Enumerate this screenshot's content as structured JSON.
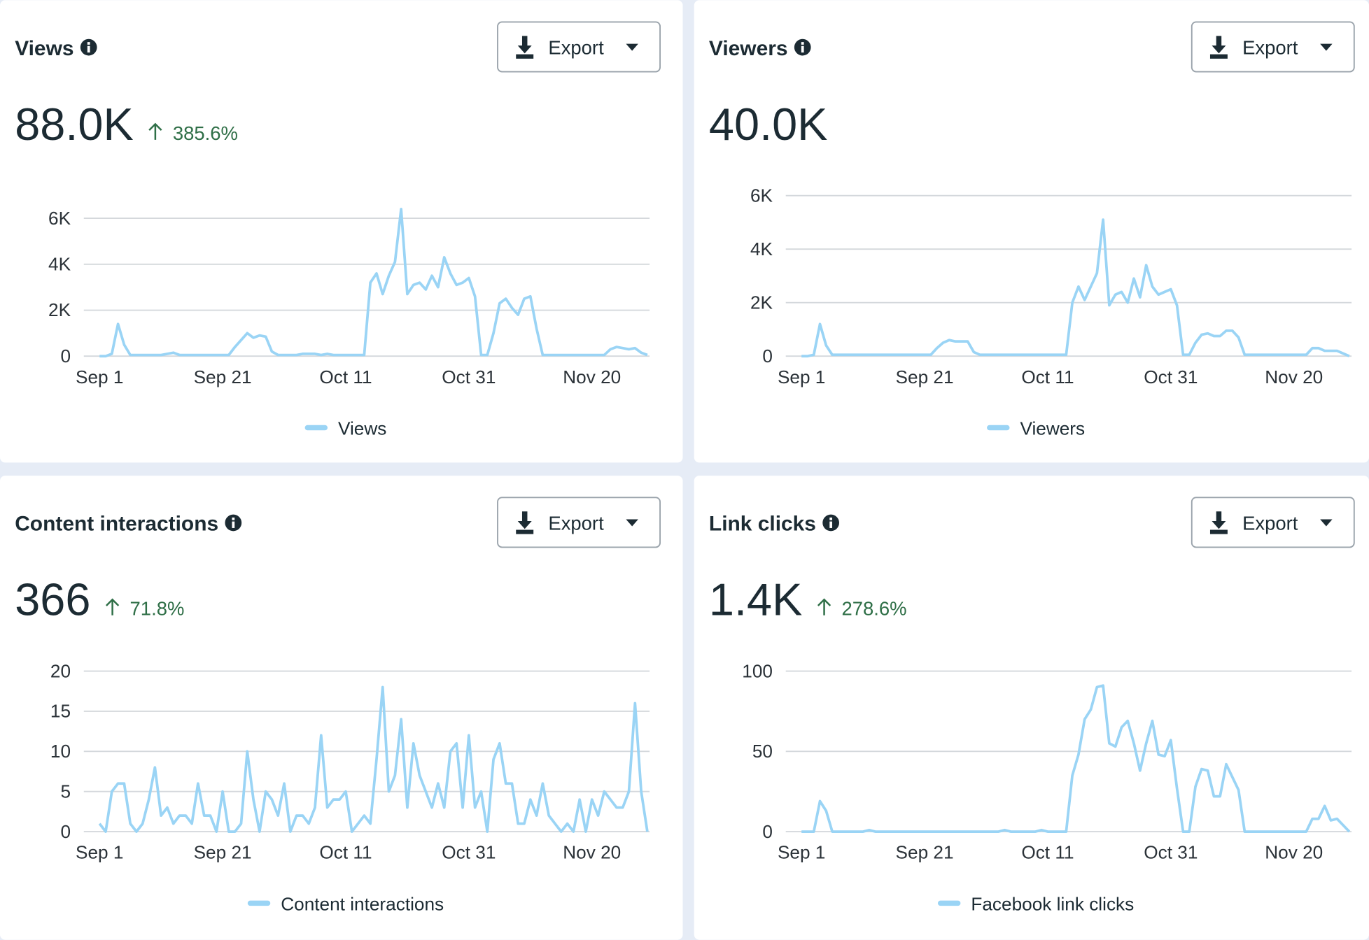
{
  "chart_data": [
    {
      "type": "line",
      "title": "Views",
      "total": "88.0K",
      "change": "385.6%",
      "button": "Export",
      "categories": [
        "Sep 1",
        null,
        null,
        null,
        null,
        null,
        null,
        null,
        null,
        null,
        null,
        null,
        null,
        null,
        null,
        null,
        null,
        null,
        null,
        null,
        "Sep 21",
        null,
        null,
        null,
        null,
        null,
        null,
        null,
        null,
        null,
        null,
        null,
        null,
        null,
        null,
        null,
        null,
        null,
        null,
        null,
        "Oct 11",
        null,
        null,
        null,
        null,
        null,
        null,
        null,
        null,
        null,
        null,
        null,
        null,
        null,
        null,
        null,
        null,
        null,
        null,
        null,
        "Oct 31",
        null,
        null,
        null,
        null,
        null,
        null,
        null,
        null,
        null,
        null,
        null,
        null,
        null,
        null,
        null,
        null,
        null,
        null,
        null,
        "Nov 20",
        null,
        null,
        null,
        null,
        null,
        null,
        null,
        null,
        null
      ],
      "series": [
        {
          "name": "Views",
          "color": "#9ad4f5",
          "values": [
            0,
            0,
            100,
            1400,
            500,
            50,
            50,
            50,
            50,
            50,
            50,
            100,
            150,
            50,
            50,
            50,
            50,
            50,
            50,
            50,
            50,
            50,
            400,
            700,
            1000,
            800,
            900,
            850,
            200,
            50,
            50,
            50,
            50,
            100,
            100,
            100,
            50,
            100,
            50,
            50,
            50,
            50,
            50,
            50,
            3200,
            3600,
            2700,
            3500,
            4100,
            6400,
            2700,
            3100,
            3200,
            2900,
            3500,
            3000,
            4300,
            3600,
            3100,
            3200,
            3400,
            2600,
            50,
            50,
            1000,
            2300,
            2500,
            2100,
            1800,
            2500,
            2600,
            1200,
            50,
            50,
            50,
            50,
            50,
            50,
            50,
            50,
            50,
            50,
            50,
            300,
            400,
            350,
            300,
            350,
            150,
            50
          ]
        }
      ],
      "ylim": [
        0,
        6000
      ],
      "yticks": [
        0,
        {
          "value": 2000,
          "label": "2K"
        },
        {
          "value": 4000,
          "label": "4K"
        },
        {
          "value": 6000,
          "label": "6K"
        }
      ],
      "grid": true
    },
    {
      "type": "line",
      "title": "Viewers",
      "total": "40.0K",
      "button": "Export",
      "categories": [
        "Sep 1",
        null,
        null,
        null,
        null,
        null,
        null,
        null,
        null,
        null,
        null,
        null,
        null,
        null,
        null,
        null,
        null,
        null,
        null,
        null,
        "Sep 21",
        null,
        null,
        null,
        null,
        null,
        null,
        null,
        null,
        null,
        null,
        null,
        null,
        null,
        null,
        null,
        null,
        null,
        null,
        null,
        "Oct 11",
        null,
        null,
        null,
        null,
        null,
        null,
        null,
        null,
        null,
        null,
        null,
        null,
        null,
        null,
        null,
        null,
        null,
        null,
        null,
        "Oct 31",
        null,
        null,
        null,
        null,
        null,
        null,
        null,
        null,
        null,
        null,
        null,
        null,
        null,
        null,
        null,
        null,
        null,
        null,
        null,
        "Nov 20",
        null,
        null,
        null,
        null,
        null,
        null,
        null,
        null,
        null
      ],
      "series": [
        {
          "name": "Viewers",
          "color": "#9ad4f5",
          "values": [
            0,
            0,
            50,
            1200,
            400,
            50,
            50,
            50,
            50,
            50,
            50,
            50,
            50,
            50,
            50,
            50,
            50,
            50,
            50,
            50,
            50,
            50,
            300,
            500,
            600,
            550,
            550,
            550,
            150,
            50,
            50,
            50,
            50,
            50,
            50,
            50,
            50,
            50,
            50,
            50,
            50,
            50,
            50,
            50,
            2000,
            2600,
            2100,
            2600,
            3100,
            5100,
            1900,
            2300,
            2400,
            2000,
            2900,
            2200,
            3400,
            2600,
            2300,
            2400,
            2500,
            1900,
            50,
            50,
            500,
            800,
            850,
            750,
            750,
            950,
            950,
            700,
            50,
            50,
            50,
            50,
            50,
            50,
            50,
            50,
            50,
            50,
            50,
            300,
            300,
            200,
            200,
            200,
            100,
            0
          ]
        }
      ],
      "ylim": [
        0,
        6000
      ],
      "yticks": [
        0,
        {
          "value": 2000,
          "label": "2K"
        },
        {
          "value": 4000,
          "label": "4K"
        },
        {
          "value": 6000,
          "label": "6K"
        }
      ],
      "grid": true
    },
    {
      "type": "line",
      "title": "Content interactions",
      "total": "366",
      "change": "71.8%",
      "button": "Export",
      "categories": [
        "Sep 1",
        null,
        null,
        null,
        null,
        null,
        null,
        null,
        null,
        null,
        null,
        null,
        null,
        null,
        null,
        null,
        null,
        null,
        null,
        null,
        "Sep 21",
        null,
        null,
        null,
        null,
        null,
        null,
        null,
        null,
        null,
        null,
        null,
        null,
        null,
        null,
        null,
        null,
        null,
        null,
        null,
        "Oct 11",
        null,
        null,
        null,
        null,
        null,
        null,
        null,
        null,
        null,
        null,
        null,
        null,
        null,
        null,
        null,
        null,
        null,
        null,
        null,
        "Oct 31",
        null,
        null,
        null,
        null,
        null,
        null,
        null,
        null,
        null,
        null,
        null,
        null,
        null,
        null,
        null,
        null,
        null,
        null,
        null,
        "Nov 20",
        null,
        null,
        null,
        null,
        null,
        null,
        null,
        null,
        null
      ],
      "series": [
        {
          "name": "Content interactions",
          "color": "#9ad4f5",
          "values": [
            1,
            0,
            5,
            6,
            6,
            1,
            0,
            1,
            4,
            8,
            2,
            3,
            1,
            2,
            2,
            1,
            6,
            2,
            2,
            0,
            5,
            0,
            0,
            1,
            10,
            4,
            0,
            5,
            4,
            2,
            6,
            0,
            2,
            2,
            1,
            3,
            12,
            3,
            4,
            4,
            5,
            0,
            1,
            2,
            1,
            9,
            18,
            5,
            7,
            14,
            3,
            11,
            7,
            5,
            3,
            6,
            3,
            10,
            11,
            3,
            12,
            3,
            5,
            0,
            9,
            11,
            6,
            6,
            1,
            1,
            4,
            2,
            6,
            2,
            1,
            0,
            1,
            0,
            4,
            0,
            4,
            2,
            5,
            4,
            3,
            3,
            5,
            16,
            5,
            0
          ]
        }
      ],
      "ylim": [
        0,
        20
      ],
      "yticks": [
        0,
        5,
        10,
        15,
        20
      ],
      "grid": true
    },
    {
      "type": "line",
      "title": "Link clicks",
      "total": "1.4K",
      "change": "278.6%",
      "button": "Export",
      "categories": [
        "Sep 1",
        null,
        null,
        null,
        null,
        null,
        null,
        null,
        null,
        null,
        null,
        null,
        null,
        null,
        null,
        null,
        null,
        null,
        null,
        null,
        "Sep 21",
        null,
        null,
        null,
        null,
        null,
        null,
        null,
        null,
        null,
        null,
        null,
        null,
        null,
        null,
        null,
        null,
        null,
        null,
        null,
        "Oct 11",
        null,
        null,
        null,
        null,
        null,
        null,
        null,
        null,
        null,
        null,
        null,
        null,
        null,
        null,
        null,
        null,
        null,
        null,
        null,
        "Oct 31",
        null,
        null,
        null,
        null,
        null,
        null,
        null,
        null,
        null,
        null,
        null,
        null,
        null,
        null,
        null,
        null,
        null,
        null,
        null,
        "Nov 20",
        null,
        null,
        null,
        null,
        null,
        null,
        null,
        null,
        null
      ],
      "series": [
        {
          "name": "Facebook link clicks",
          "color": "#9ad4f5",
          "values": [
            0,
            0,
            0,
            19,
            13,
            0,
            0,
            0,
            0,
            0,
            0,
            1,
            0,
            0,
            0,
            0,
            0,
            0,
            0,
            0,
            0,
            0,
            0,
            0,
            0,
            0,
            0,
            0,
            0,
            0,
            0,
            0,
            0,
            1,
            0,
            0,
            0,
            0,
            0,
            1,
            0,
            0,
            0,
            0,
            35,
            48,
            70,
            76,
            90,
            91,
            55,
            53,
            65,
            69,
            55,
            38,
            55,
            69,
            48,
            47,
            57,
            27,
            0,
            0,
            28,
            39,
            38,
            22,
            22,
            42,
            34,
            26,
            0,
            0,
            0,
            0,
            0,
            0,
            0,
            0,
            0,
            0,
            0,
            8,
            8,
            16,
            7,
            8,
            4,
            0
          ]
        }
      ],
      "ylim": [
        0,
        100
      ],
      "yticks": [
        0,
        50,
        100
      ],
      "grid": true
    }
  ]
}
